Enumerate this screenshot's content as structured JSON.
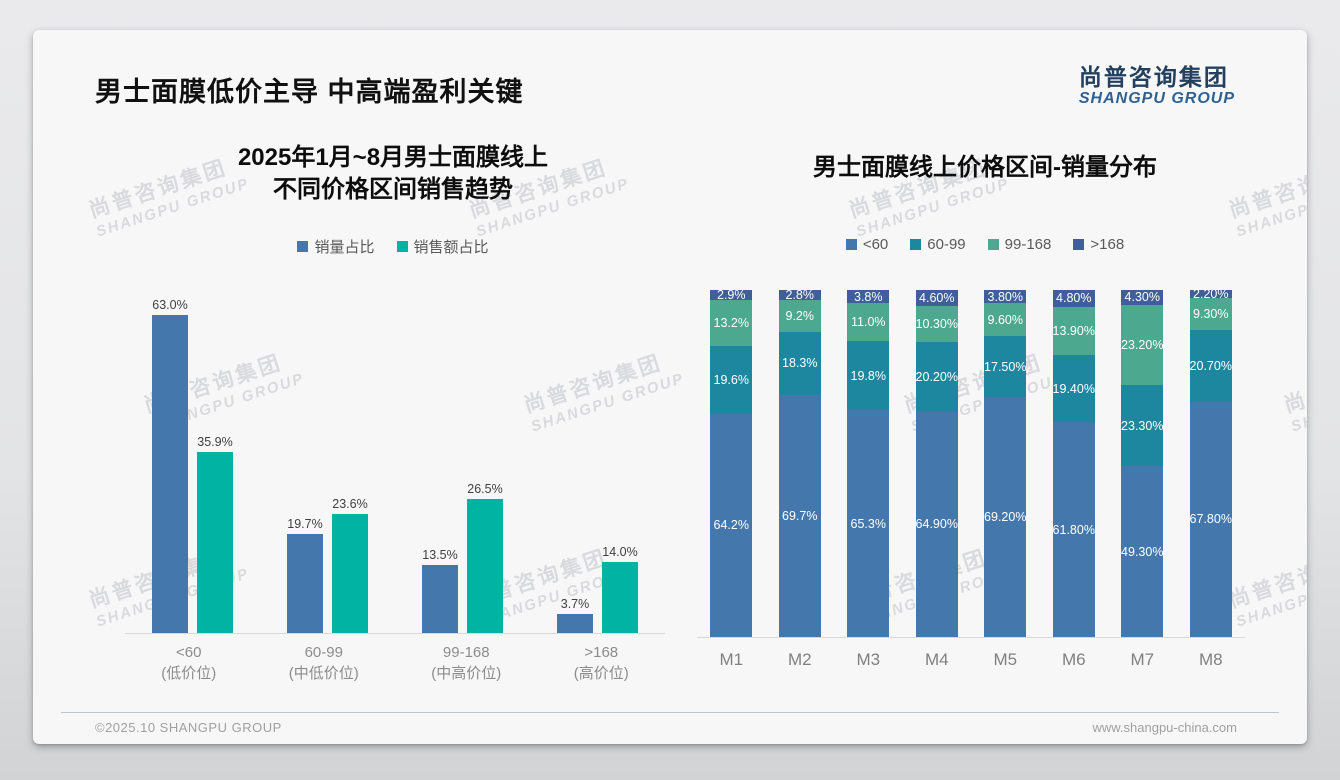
{
  "page": {
    "title": "男士面膜低价主导 中高端盈利关键"
  },
  "logo": {
    "cn": "尚普咨询集团",
    "en": "SHANGPU GROUP"
  },
  "watermark": {
    "cn": "尚普咨询集团",
    "en": "SHANGPU GROUP"
  },
  "footer": {
    "copyright": "©2025.10 SHANGPU GROUP",
    "website": "www.shangpu-china.com"
  },
  "colors": {
    "sales_volume_blue": "#4478ad",
    "sales_amount_teal": "#00b3a2",
    "band_lt60": "#4478ad",
    "band_60_99": "#1e87a0",
    "band_99_168": "#4ca88e",
    "band_gt168": "#3f5e9a"
  },
  "chart_data": [
    {
      "type": "bar",
      "title": "2025年1月~8月男士面膜线上\n不同价格区间销售趋势",
      "title_lines": [
        "2025年1月~8月男士面膜线上",
        "不同价格区间销售趋势"
      ],
      "categories": [
        [
          "<60",
          "(低价位)"
        ],
        [
          "60-99",
          "(中低价位)"
        ],
        [
          "99-168",
          "(中高价位)"
        ],
        [
          ">168",
          "(高价位)"
        ]
      ],
      "series": [
        {
          "name": "销量占比",
          "color": "#4478ad",
          "values": [
            63.0,
            19.7,
            13.5,
            3.7
          ],
          "labels": [
            "63.0%",
            "19.7%",
            "13.5%",
            "3.7%"
          ]
        },
        {
          "name": "销售额占比",
          "color": "#00b3a2",
          "values": [
            35.9,
            23.6,
            26.5,
            14.0
          ],
          "labels": [
            "35.9%",
            "23.6%",
            "26.5%",
            "14.0%"
          ]
        }
      ],
      "xlabel": "",
      "ylabel": "",
      "ylim": [
        0,
        70
      ],
      "grid": false,
      "y_axis_shown": false,
      "legend_position": "top"
    },
    {
      "type": "stacked-bar-100",
      "title": "男士面膜线上价格区间-销量分布",
      "categories": [
        "M1",
        "M2",
        "M3",
        "M4",
        "M5",
        "M6",
        "M7",
        "M8"
      ],
      "series": [
        {
          "name": "<60",
          "color": "#4478ad",
          "values": [
            64.2,
            69.7,
            65.3,
            64.9,
            69.2,
            61.8,
            49.3,
            67.8
          ],
          "labels": [
            "64.2%",
            "69.7%",
            "65.3%",
            "64.90%",
            "69.20%",
            "61.80%",
            "49.30%",
            "67.80%"
          ]
        },
        {
          "name": "60-99",
          "color": "#1e87a0",
          "values": [
            19.6,
            18.3,
            19.8,
            20.2,
            17.5,
            19.4,
            23.3,
            20.7
          ],
          "labels": [
            "19.6%",
            "18.3%",
            "19.8%",
            "20.20%",
            "17.50%",
            "19.40%",
            "23.30%",
            "20.70%"
          ]
        },
        {
          "name": "99-168",
          "color": "#4ca88e",
          "values": [
            13.2,
            9.2,
            11.0,
            10.3,
            9.6,
            13.9,
            23.2,
            9.3
          ],
          "labels": [
            "13.2%",
            "9.2%",
            "11.0%",
            "10.30%",
            "9.60%",
            "13.90%",
            "23.20%",
            "9.30%"
          ]
        },
        {
          "name": ">168",
          "color": "#3f5e9a",
          "values": [
            2.9,
            2.8,
            3.8,
            4.6,
            3.8,
            4.8,
            4.3,
            2.2
          ],
          "labels": [
            "2.9%",
            "2.8%",
            "3.8%",
            "4.60%",
            "3.80%",
            "4.80%",
            "4.30%",
            "2.20%"
          ]
        }
      ],
      "xlabel": "",
      "ylabel": "",
      "ylim": [
        0,
        100
      ],
      "grid": false,
      "y_axis_shown": false,
      "legend_position": "top"
    }
  ]
}
